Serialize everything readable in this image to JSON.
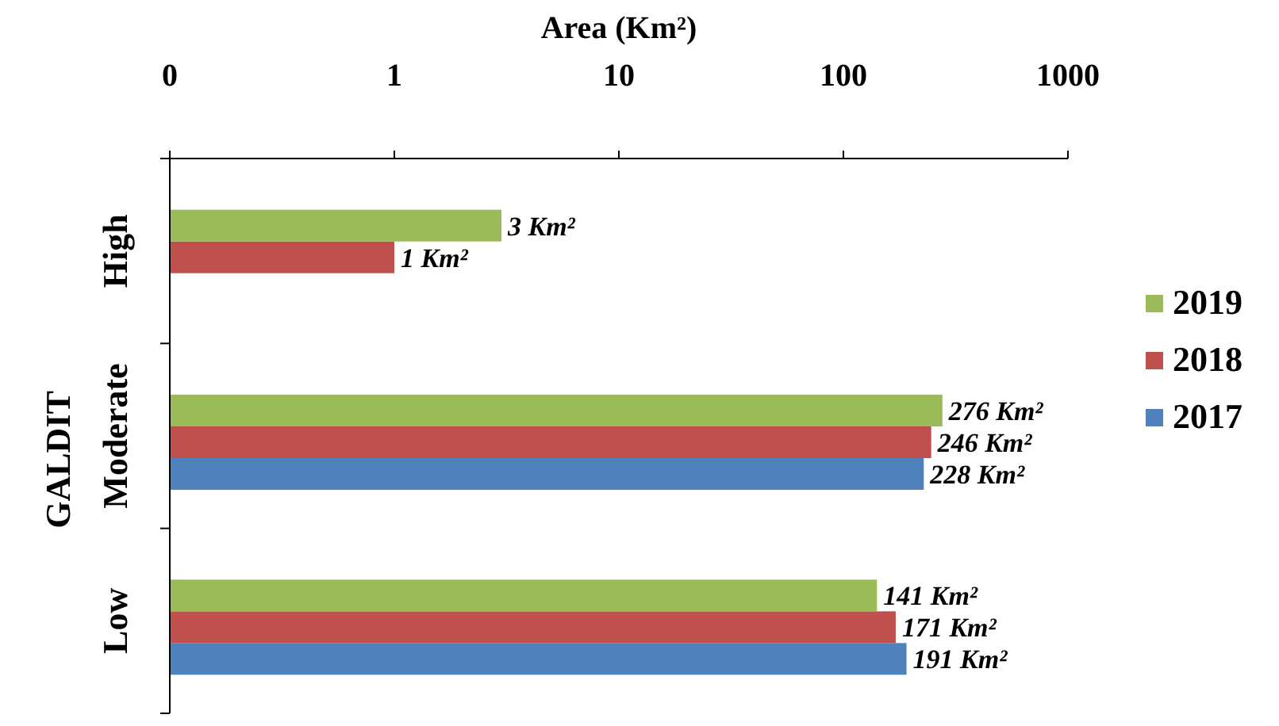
{
  "chart_data": {
    "type": "bar",
    "orientation": "horizontal",
    "xlabel": "Area (Km²)",
    "ylabel": "GALDIT",
    "categories": [
      "High",
      "Moderate",
      "Low"
    ],
    "log": "x",
    "xlim": [
      0.1,
      1000
    ],
    "xticks": [
      {
        "value": 0.1,
        "label": "0"
      },
      1,
      10,
      100,
      1000
    ],
    "legend": "right",
    "grid": false,
    "series": [
      {
        "name": "2017",
        "color": "#4f81bd",
        "values": [
          null,
          228,
          191
        ],
        "value_labels": [
          null,
          "228 Km²",
          "191 Km²"
        ]
      },
      {
        "name": "2018",
        "color": "#c0504d",
        "values": [
          1,
          246,
          171
        ],
        "value_labels": [
          "1 Km²",
          "246 Km²",
          "171 Km²"
        ]
      },
      {
        "name": "2019",
        "color": "#9bbb59",
        "values": [
          3,
          276,
          141
        ],
        "value_labels": [
          "3 Km²",
          "276 Km²",
          "141 Km²"
        ]
      }
    ]
  }
}
